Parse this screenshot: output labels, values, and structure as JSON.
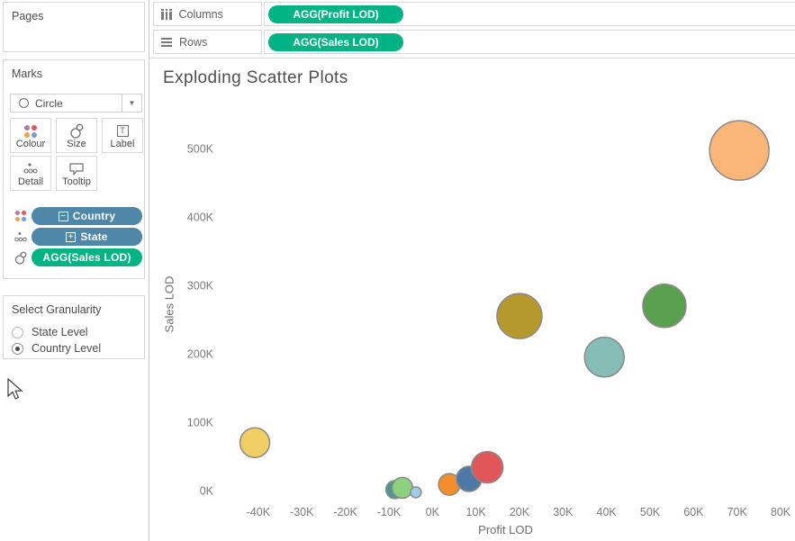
{
  "sidebar": {
    "pages": {
      "title": "Pages"
    },
    "marks": {
      "title": "Marks",
      "mark_type": "Circle",
      "buttons": [
        {
          "label": "Colour",
          "icon": "colour-dots-icon"
        },
        {
          "label": "Size",
          "icon": "size-circles-icon"
        },
        {
          "label": "Label",
          "icon": "label-t-icon"
        },
        {
          "label": "Detail",
          "icon": "detail-dots-icon"
        },
        {
          "label": "Tooltip",
          "icon": "tooltip-bubble-icon"
        }
      ],
      "pills": [
        {
          "label": "Country",
          "color": "#4e87a8",
          "prefix_icon": "minus-box-icon",
          "prefix_glyph": "−",
          "row_icon": "colour-dots-icon"
        },
        {
          "label": "State",
          "color": "#4e87a8",
          "prefix_icon": "plus-box-icon",
          "prefix_glyph": "+",
          "row_icon": "detail-dots-icon"
        },
        {
          "label": "AGG(Sales LOD)",
          "color": "#00b385",
          "prefix_icon": "",
          "prefix_glyph": "",
          "row_icon": "size-circles-icon"
        }
      ],
      "colour_icon_dots": [
        "#b07aa1",
        "#e0585c",
        "#f0a24a",
        "#7b9ece"
      ]
    },
    "granularity": {
      "title": "Select Granularity",
      "options": [
        {
          "label": "State Level",
          "selected": false
        },
        {
          "label": "Country Level",
          "selected": true
        }
      ]
    }
  },
  "shelves": {
    "columns": {
      "label": "Columns",
      "pill": {
        "label": "AGG(Profit LOD)",
        "color": "#00b385"
      }
    },
    "rows": {
      "label": "Rows",
      "pill": {
        "label": "AGG(Sales LOD)",
        "color": "#00b385"
      }
    }
  },
  "chart_data": {
    "type": "scatter",
    "title": "Exploding Scatter Plots",
    "xlabel": "Profit LOD",
    "ylabel": "Sales LOD",
    "grid": false,
    "xlim": [
      -49700,
      83300
    ],
    "ylim": [
      -14500,
      559000
    ],
    "x_ticks": [
      {
        "label": "-40K",
        "value": -40000
      },
      {
        "label": "-30K",
        "value": -30000
      },
      {
        "label": "-20K",
        "value": -20000
      },
      {
        "label": "-10K",
        "value": -10000
      },
      {
        "label": "0K",
        "value": 0
      },
      {
        "label": "10K",
        "value": 10000
      },
      {
        "label": "20K",
        "value": 20000
      },
      {
        "label": "30K",
        "value": 30000
      },
      {
        "label": "40K",
        "value": 40000
      },
      {
        "label": "50K",
        "value": 50000
      },
      {
        "label": "60K",
        "value": 60000
      },
      {
        "label": "70K",
        "value": 70000
      },
      {
        "label": "80K",
        "value": 80000
      }
    ],
    "y_ticks": [
      {
        "label": "0K",
        "value": 0
      },
      {
        "label": "100K",
        "value": 100000
      },
      {
        "label": "200K",
        "value": 200000
      },
      {
        "label": "300K",
        "value": 300000
      },
      {
        "label": "400K",
        "value": 400000
      },
      {
        "label": "500K",
        "value": 500000
      }
    ],
    "point_stroke": "#8a8a8a",
    "points": [
      {
        "x": 70500,
        "y": 497000,
        "r": 33,
        "color": "#FAB578"
      },
      {
        "x": 53300,
        "y": 270000,
        "r": 24,
        "color": "#59A14F"
      },
      {
        "x": 39500,
        "y": 195000,
        "r": 22,
        "color": "#86BCB6"
      },
      {
        "x": 20000,
        "y": 255000,
        "r": 25,
        "color": "#B6992D"
      },
      {
        "x": -40800,
        "y": 70000,
        "r": 16.5,
        "color": "#F1CE63"
      },
      {
        "x": -8600,
        "y": 1500,
        "r": 10,
        "color": "#499894"
      },
      {
        "x": -6900,
        "y": 4000,
        "r": 11.5,
        "color": "#8CD17D"
      },
      {
        "x": -3800,
        "y": -2500,
        "r": 6,
        "color": "#A0CBE8"
      },
      {
        "x": 3900,
        "y": 9000,
        "r": 12,
        "color": "#F28E2B"
      },
      {
        "x": 8400,
        "y": 17000,
        "r": 14,
        "color": "#4E79A7"
      },
      {
        "x": 12600,
        "y": 34000,
        "r": 17.5,
        "color": "#E15759"
      }
    ]
  }
}
